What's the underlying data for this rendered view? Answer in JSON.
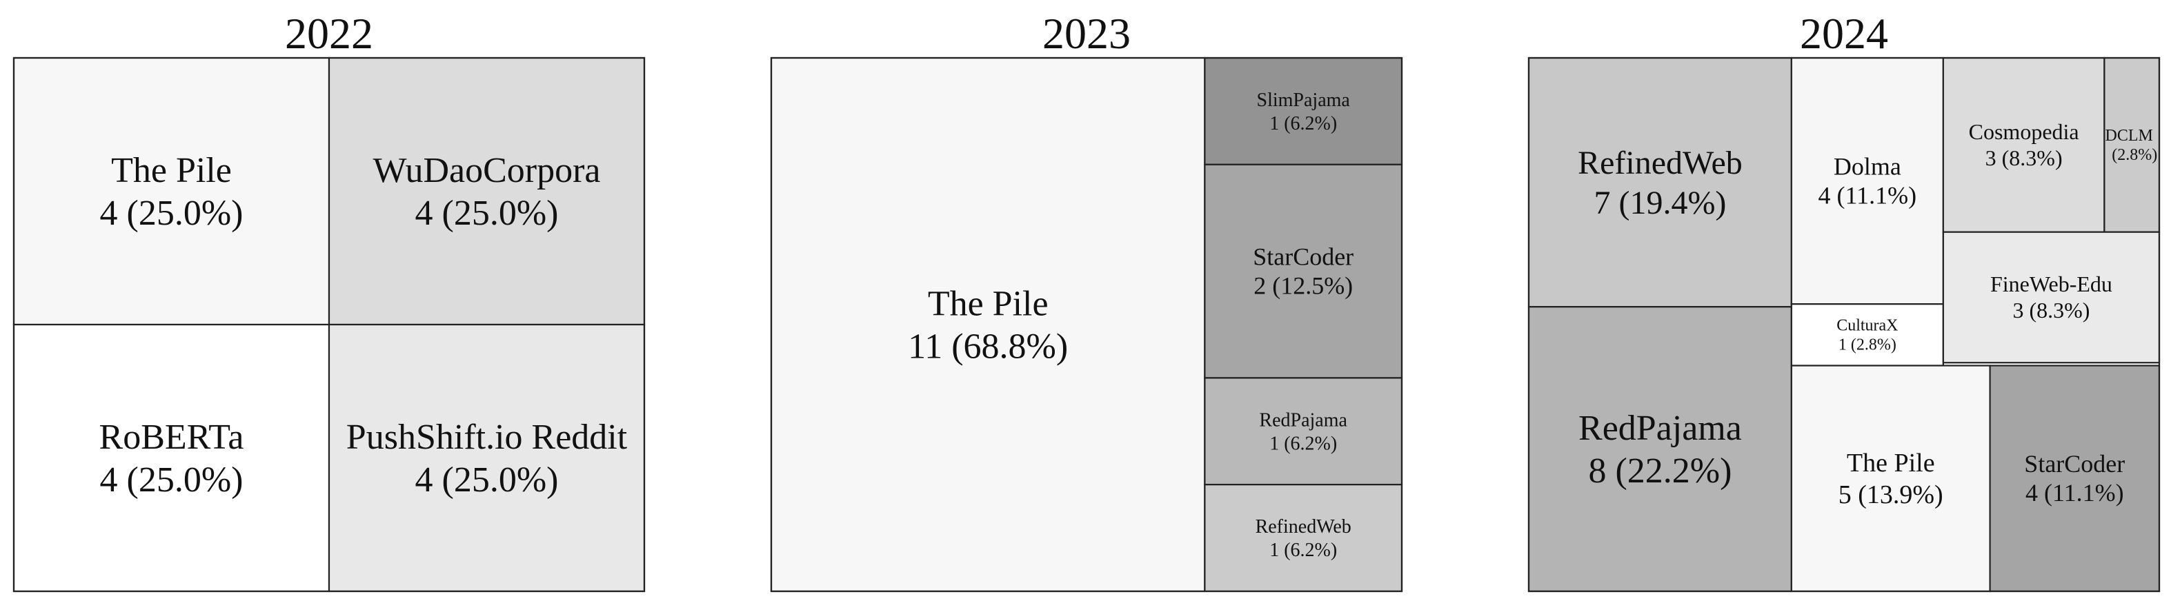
{
  "chart_data": [
    {
      "type": "treemap",
      "title": "2022",
      "items": [
        {
          "name": "The Pile",
          "value": 4,
          "label": "4 (25.0%)",
          "color": "#f7f7f7"
        },
        {
          "name": "WuDaoCorpora",
          "value": 4,
          "label": "4 (25.0%)",
          "color": "#dcdcdc"
        },
        {
          "name": "RoBERTa",
          "value": 4,
          "label": "4 (25.0%)",
          "color": "#ffffff"
        },
        {
          "name": "PushShift.io Reddit",
          "value": 4,
          "label": "4 (25.0%)",
          "color": "#e8e8e8"
        }
      ]
    },
    {
      "type": "treemap",
      "title": "2023",
      "items": [
        {
          "name": "The Pile",
          "value": 11,
          "label": "11 (68.8%)",
          "color": "#f7f7f7"
        },
        {
          "name": "SlimPajama",
          "value": 1,
          "label": "1 (6.2%)",
          "color": "#939393"
        },
        {
          "name": "StarCoder",
          "value": 2,
          "label": "2 (12.5%)",
          "color": "#a6a6a6"
        },
        {
          "name": "RedPajama",
          "value": 1,
          "label": "1 (6.2%)",
          "color": "#b9b9b9"
        },
        {
          "name": "RefinedWeb",
          "value": 1,
          "label": "1 (6.2%)",
          "color": "#cbcbcb"
        }
      ]
    },
    {
      "type": "treemap",
      "title": "2024",
      "items": [
        {
          "name": "RefinedWeb",
          "value": 7,
          "label": "7 (19.4%)",
          "color": "#c8c8c8"
        },
        {
          "name": "RedPajama",
          "value": 8,
          "label": "8 (22.2%)",
          "color": "#b4b4b4"
        },
        {
          "name": "Dolma",
          "value": 4,
          "label": "4 (11.1%)",
          "color": "#f6f6f6"
        },
        {
          "name": "CulturaX",
          "value": 1,
          "label": "1 (2.8%)",
          "color": "#ffffff"
        },
        {
          "name": "Cosmopedia",
          "value": 3,
          "label": "3 (8.3%)",
          "color": "#dcdcdc"
        },
        {
          "name": "DCLM",
          "value": 1,
          "label": "(2.8%)",
          "color": "#cbcbcb"
        },
        {
          "name": "FineWeb-Edu",
          "value": 3,
          "label": "3 (8.3%)",
          "color": "#eaeaea"
        },
        {
          "name": "The Pile",
          "value": 5,
          "label": "5 (13.9%)",
          "color": "#f7f7f7"
        },
        {
          "name": "StarCoder",
          "value": 4,
          "label": "4 (11.1%)",
          "color": "#a5a5a5"
        }
      ]
    }
  ]
}
